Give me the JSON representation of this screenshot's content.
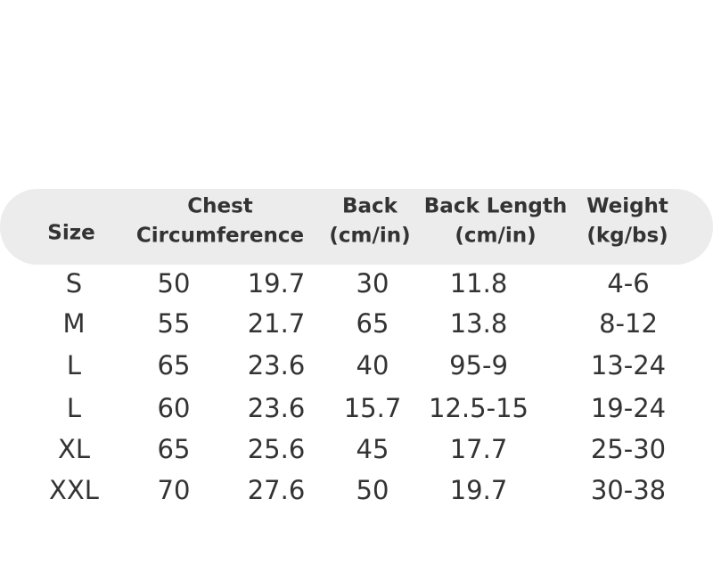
{
  "table": {
    "header": [
      [
        "Size"
      ],
      [
        "Chest",
        "Circumference"
      ],
      [
        "Back",
        "(cm/in)"
      ],
      [
        "Back Length",
        "(cm/in)"
      ],
      [
        "Weight",
        "(kg/bs)"
      ]
    ],
    "rows": [
      [
        "S",
        "50",
        "19.7",
        "30",
        "11.8",
        "4-6"
      ],
      [
        "M",
        "55",
        "21.7",
        "65",
        "13.8",
        "8-12"
      ],
      [
        "L",
        "65",
        "23.6",
        "40",
        "95-9",
        "13-24"
      ],
      [
        "L",
        "60",
        "23.6",
        "15.7",
        "12.5-15",
        "19-24"
      ],
      [
        "XL",
        "65",
        "25.6",
        "45",
        "17.7",
        "25-30"
      ],
      [
        "XXL",
        "70",
        "27.6",
        "50",
        "19.7",
        "30-38"
      ]
    ]
  }
}
